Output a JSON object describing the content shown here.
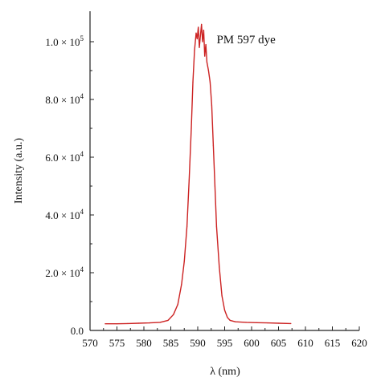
{
  "chart_data": {
    "type": "line",
    "xlabel": "λ (nm)",
    "ylabel": "Intensity (a.u.)",
    "xlim": [
      570,
      620
    ],
    "ylim": [
      0,
      110000
    ],
    "x_ticks": [
      570,
      575,
      580,
      585,
      590,
      595,
      600,
      605,
      610,
      615,
      620
    ],
    "x_tick_labels": [
      "570",
      "575",
      "580",
      "585",
      "590",
      "595",
      "600",
      "605",
      "610",
      "615",
      "620"
    ],
    "y_ticks": [
      0,
      20000,
      40000,
      60000,
      80000,
      100000
    ],
    "y_tick_labels": [
      {
        "mantissa": "0.0",
        "exponent": ""
      },
      {
        "mantissa": "2.0 × 10",
        "exponent": "4"
      },
      {
        "mantissa": "4.0 × 10",
        "exponent": "4"
      },
      {
        "mantissa": "6.0 × 10",
        "exponent": "4"
      },
      {
        "mantissa": "8.0 × 10",
        "exponent": "4"
      },
      {
        "mantissa": "1.0 × 10",
        "exponent": "5"
      }
    ],
    "annotations": [
      {
        "text": "PM 597 dye",
        "x": 593.5,
        "y": 100000
      }
    ],
    "grid": false,
    "series": [
      {
        "color": "#cc2222",
        "x": [
          572.8,
          575,
          577,
          579,
          581,
          583,
          584.5,
          585.5,
          586.3,
          587,
          587.5,
          588,
          588.4,
          588.8,
          589.1,
          589.4,
          589.7,
          589.9,
          590.1,
          590.3,
          590.5,
          590.7,
          590.9,
          591.1,
          591.3,
          591.5,
          591.7,
          592,
          592.3,
          592.6,
          592.9,
          593.2,
          593.5,
          594,
          594.5,
          595,
          595.5,
          596,
          597,
          599,
          601,
          603,
          605,
          607.3
        ],
        "y": [
          2300,
          2300,
          2400,
          2500,
          2600,
          2800,
          3500,
          5500,
          9000,
          16000,
          24000,
          36000,
          52000,
          70000,
          86000,
          97000,
          103000,
          101000,
          105000,
          98000,
          102000,
          106000,
          100000,
          104000,
          95000,
          99000,
          93000,
          90000,
          86000,
          78000,
          64000,
          50000,
          36000,
          22000,
          12000,
          7000,
          4500,
          3500,
          3000,
          2800,
          2700,
          2600,
          2500,
          2400
        ]
      }
    ]
  }
}
